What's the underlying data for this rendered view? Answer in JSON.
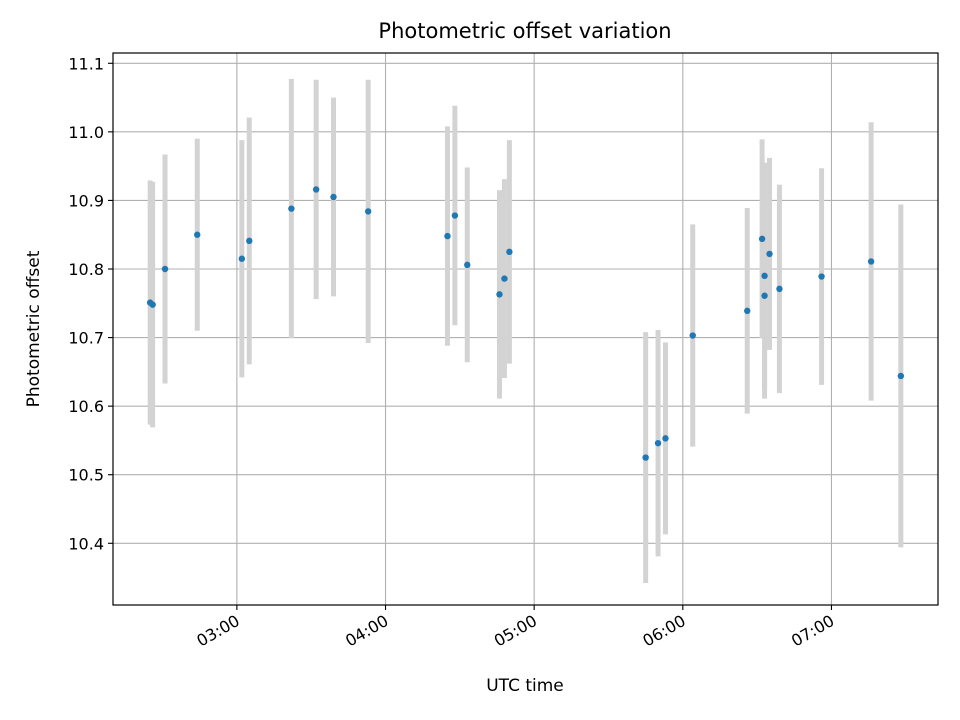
{
  "chart_data": {
    "type": "scatter",
    "title": "Photometric offset variation",
    "xlabel": "UTC time",
    "ylabel": "Photometric offset",
    "x_tick_labels": [
      "03:00",
      "04:00",
      "05:00",
      "06:00",
      "07:00"
    ],
    "x_ticks": [
      "03:00",
      "04:00",
      "05:00",
      "06:00",
      "07:00"
    ],
    "y_ticks": [
      10.4,
      10.5,
      10.6,
      10.7,
      10.8,
      10.9,
      11.0,
      11.1
    ],
    "y_tick_labels": [
      "10.4",
      "10.5",
      "10.6",
      "10.7",
      "10.8",
      "10.9",
      "11.0",
      "11.1"
    ],
    "xlim": [
      "02:10",
      "07:43"
    ],
    "ylim": [
      10.31,
      11.115
    ],
    "grid": true,
    "colors": {
      "point": "#1f77b4",
      "errorbar": "#d3d3d3",
      "grid": "#b0b0b0"
    },
    "points": [
      {
        "x": "02:25",
        "y": 10.751,
        "err": 0.178
      },
      {
        "x": "02:26",
        "y": 10.748,
        "err": 0.179
      },
      {
        "x": "02:31",
        "y": 10.8,
        "err": 0.167
      },
      {
        "x": "02:44",
        "y": 10.85,
        "err": 0.14
      },
      {
        "x": "03:02",
        "y": 10.815,
        "err": 0.173
      },
      {
        "x": "03:05",
        "y": 10.841,
        "err": 0.18
      },
      {
        "x": "03:22",
        "y": 10.888,
        "err": 0.189
      },
      {
        "x": "03:32",
        "y": 10.916,
        "err": 0.16
      },
      {
        "x": "03:39",
        "y": 10.905,
        "err": 0.145
      },
      {
        "x": "03:53",
        "y": 10.884,
        "err": 0.192
      },
      {
        "x": "04:25",
        "y": 10.848,
        "err": 0.16
      },
      {
        "x": "04:28",
        "y": 10.878,
        "err": 0.16
      },
      {
        "x": "04:33",
        "y": 10.806,
        "err": 0.142
      },
      {
        "x": "04:46",
        "y": 10.763,
        "err": 0.152
      },
      {
        "x": "04:48",
        "y": 10.786,
        "err": 0.145
      },
      {
        "x": "04:50",
        "y": 10.825,
        "err": 0.163
      },
      {
        "x": "05:45",
        "y": 10.525,
        "err": 0.183
      },
      {
        "x": "05:50",
        "y": 10.546,
        "err": 0.165
      },
      {
        "x": "05:53",
        "y": 10.553,
        "err": 0.14
      },
      {
        "x": "06:04",
        "y": 10.703,
        "err": 0.162
      },
      {
        "x": "06:26",
        "y": 10.739,
        "err": 0.15
      },
      {
        "x": "06:32",
        "y": 10.844,
        "err": 0.145
      },
      {
        "x": "06:33",
        "y": 10.79,
        "err": 0.165
      },
      {
        "x": "06:33",
        "y": 10.761,
        "err": 0.15
      },
      {
        "x": "06:35",
        "y": 10.822,
        "err": 0.14
      },
      {
        "x": "06:39",
        "y": 10.771,
        "err": 0.152
      },
      {
        "x": "06:56",
        "y": 10.789,
        "err": 0.158
      },
      {
        "x": "07:16",
        "y": 10.811,
        "err": 0.203
      },
      {
        "x": "07:28",
        "y": 10.644,
        "err": 0.25
      }
    ]
  }
}
